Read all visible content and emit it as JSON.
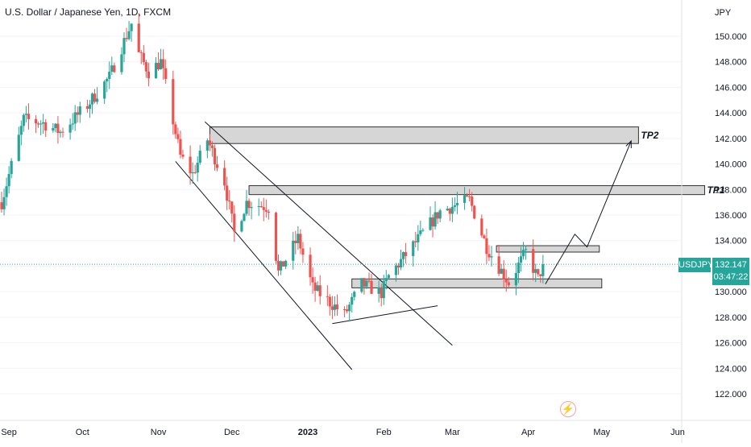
{
  "header": {
    "title": "U.S. Dollar / Japanese Yen, 1D, FXCM"
  },
  "price_badge": {
    "symbol": "USDJPY",
    "price": "132.147",
    "countdown": "03:47:22"
  },
  "colors": {
    "up": "#26a69a",
    "down": "#ef5350",
    "zone_fill": "#d6d6d6",
    "zone_stroke": "#333333",
    "last_price_line": "#26a69a",
    "grid": "#f0f3fa",
    "line": "#131722"
  },
  "chart_data": {
    "type": "candlestick",
    "title": "U.S. Dollar / Japanese Yen, 1D, FXCM",
    "y_axis_label": "JPY",
    "ylim": [
      120.5,
      152.5
    ],
    "y_ticks": [
      "150.000",
      "148.000",
      "146.000",
      "144.000",
      "142.000",
      "140.000",
      "138.000",
      "136.000",
      "134.000",
      "132.000",
      "130.000",
      "128.000",
      "126.000",
      "124.000",
      "122.000"
    ],
    "x_ticks": [
      "Sep",
      "Oct",
      "Nov",
      "Dec",
      "2023",
      "Feb",
      "Mar",
      "Apr",
      "May",
      "Jun"
    ],
    "last_price": 132.147,
    "anchors": [
      [
        "2022-08-29",
        137.0
      ],
      [
        "2022-09-07",
        143.5
      ],
      [
        "2022-09-15",
        143.2
      ],
      [
        "2022-09-22",
        142.5
      ],
      [
        "2022-10-03",
        144.6
      ],
      [
        "2022-10-12",
        146.8
      ],
      [
        "2022-10-21",
        151.0
      ],
      [
        "2022-10-24",
        148.6
      ],
      [
        "2022-10-28",
        147.2
      ],
      [
        "2022-11-02",
        148.0
      ],
      [
        "2022-11-10",
        140.6
      ],
      [
        "2022-11-15",
        139.2
      ],
      [
        "2022-11-21",
        141.9
      ],
      [
        "2022-11-28",
        138.6
      ],
      [
        "2022-12-02",
        134.6
      ],
      [
        "2022-12-07",
        137.0
      ],
      [
        "2022-12-16",
        136.6
      ],
      [
        "2022-12-20",
        131.5
      ],
      [
        "2022-12-28",
        134.2
      ],
      [
        "2023-01-03",
        130.3
      ],
      [
        "2023-01-16",
        128.2
      ],
      [
        "2023-01-23",
        130.6
      ],
      [
        "2023-01-31",
        129.9
      ],
      [
        "2023-02-03",
        131.2
      ],
      [
        "2023-02-15",
        134.1
      ],
      [
        "2023-02-24",
        136.3
      ],
      [
        "2023-03-08",
        137.2
      ],
      [
        "2023-03-15",
        133.5
      ],
      [
        "2023-03-24",
        130.7
      ],
      [
        "2023-03-31",
        133.1
      ],
      [
        "2023-04-05",
        131.0
      ],
      [
        "2023-04-07",
        132.1
      ]
    ],
    "zones": [
      {
        "label": "TP2",
        "start": "2022-11-22",
        "end": "2023-05-16",
        "y_low": 141.6,
        "y_high": 142.9
      },
      {
        "label": "TP1",
        "start": "2022-12-08",
        "end": "2023-06-12",
        "y_low": 137.6,
        "y_high": 138.3
      },
      {
        "label": "",
        "start": "2023-03-19",
        "end": "2023-04-30",
        "y_low": 133.1,
        "y_high": 133.6
      },
      {
        "label": "",
        "start": "2023-01-19",
        "end": "2023-05-01",
        "y_low": 130.3,
        "y_high": 131.0
      }
    ],
    "lines": [
      {
        "x1": "2022-11-08",
        "y1": 140.2,
        "x2": "2023-01-19",
        "y2": 123.9
      },
      {
        "x1": "2022-11-20",
        "y1": 143.3,
        "x2": "2023-03-01",
        "y2": 125.8
      },
      {
        "x1": "2023-01-11",
        "y1": 127.5,
        "x2": "2023-02-23",
        "y2": 128.9
      }
    ],
    "projection": [
      {
        "date": "2023-04-08",
        "price": 130.6
      },
      {
        "date": "2023-04-20",
        "price": 134.5
      },
      {
        "date": "2023-04-25",
        "price": 133.5
      },
      {
        "date": "2023-05-13",
        "price": 141.8
      }
    ]
  }
}
